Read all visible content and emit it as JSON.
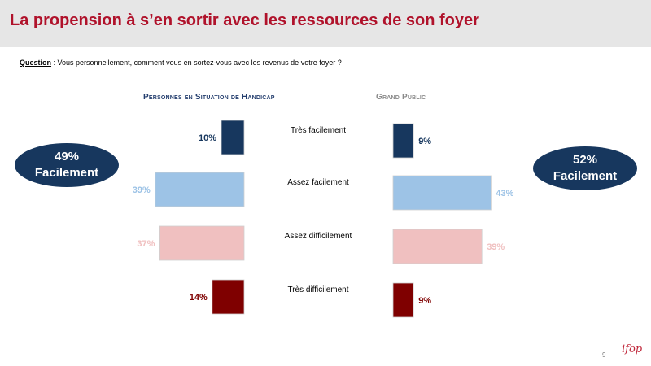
{
  "header": {
    "title": "La propension à s’en sortir avec les ressources de son foyer"
  },
  "question": {
    "label": "Question",
    "sep": " :  ",
    "text": "Vous personnellement, comment vous en sortez-vous avec les revenus de votre foyer ?"
  },
  "panels": {
    "left_title": "Personnes en Situation de Handicap",
    "right_title": "Grand Public"
  },
  "badges": {
    "left": {
      "value": "49%",
      "label": "Facilement"
    },
    "right": {
      "value": "52%",
      "label": "Facilement"
    }
  },
  "colors": {
    "tres_facilement": "#17375e",
    "assez_facilement": "#9dc3e6",
    "assez_difficilement": "#f0c0c0",
    "tres_difficilement": "#7f0000"
  },
  "chart_data": {
    "type": "bar",
    "categories": [
      "Très facilement",
      "Assez facilement",
      "Assez difficilement",
      "Très difficilement"
    ],
    "series": [
      {
        "name": "Personnes en Situation de Handicap",
        "values": [
          10,
          39,
          37,
          14
        ],
        "labels": [
          "10%",
          "39%",
          "37%",
          "14%"
        ]
      },
      {
        "name": "Grand Public",
        "values": [
          9,
          43,
          39,
          9
        ],
        "labels": [
          "9%",
          "43%",
          "39%",
          "9%"
        ]
      }
    ],
    "ylim": [
      0,
      100
    ]
  },
  "footer": {
    "page": "9",
    "logo": "ifop"
  }
}
